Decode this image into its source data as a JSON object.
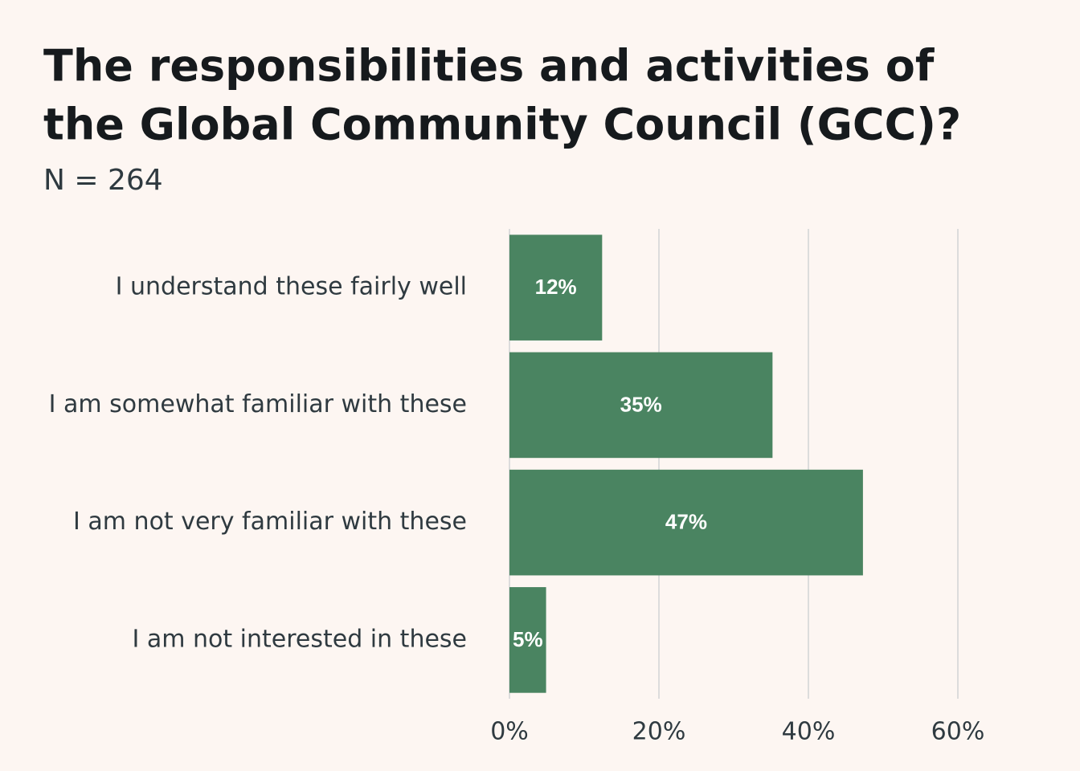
{
  "chart_data": {
    "type": "bar",
    "orientation": "horizontal",
    "title": [
      "The responsibilities and activities of",
      "the Global Community Council (GCC)?"
    ],
    "subtitle": "N = 264",
    "categories": [
      "I understand these fairly well",
      "I am somewhat familiar with these",
      "I am not very familiar with these",
      "I am not interested in these"
    ],
    "values": [
      12.4,
      35.2,
      47.3,
      4.9
    ],
    "value_labels": [
      "12%",
      "35%",
      "47%",
      "5%"
    ],
    "color": "#4a8461",
    "xlim": [
      0,
      62
    ],
    "xticks": [
      {
        "value": 0,
        "label": "0%"
      },
      {
        "value": 20,
        "label": "20%"
      },
      {
        "value": 40,
        "label": "40%"
      },
      {
        "value": 60,
        "label": "60%"
      }
    ],
    "grid": true
  }
}
